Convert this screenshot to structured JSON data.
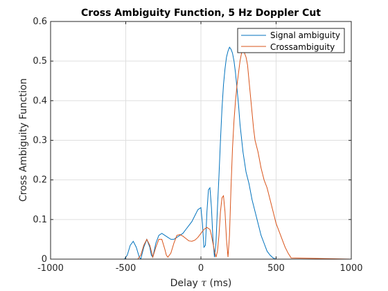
{
  "chart_data": {
    "type": "line",
    "title": "Cross Ambiguity Function, 5 Hz Doppler Cut",
    "xlabel_pre": "Delay ",
    "xlabel_sym": "τ",
    "xlabel_post": " (ms)",
    "ylabel": "Cross Ambiguity Function",
    "xlim": [
      -1000,
      1000
    ],
    "ylim": [
      0,
      0.6
    ],
    "xticks": [
      "-1000",
      "-500",
      "0",
      "500",
      "1000"
    ],
    "xtick_values": [
      -1000,
      -500,
      0,
      500,
      1000
    ],
    "yticks": [
      "0",
      "0.1",
      "0.2",
      "0.3",
      "0.4",
      "0.5",
      "0.6"
    ],
    "ytick_values": [
      0,
      0.1,
      0.2,
      0.3,
      0.4,
      0.5,
      0.6
    ],
    "grid": true,
    "legend_position": "top-right",
    "series": [
      {
        "name": "Signal ambiguity",
        "color": "#0072bd",
        "x": [
          -1000,
          -510,
          -490,
          -470,
          -450,
          -430,
          -410,
          -400,
          -380,
          -360,
          -340,
          -330,
          -320,
          -300,
          -280,
          -260,
          -240,
          -220,
          -200,
          -180,
          -160,
          -140,
          -120,
          -100,
          -80,
          -60,
          -40,
          -20,
          0,
          10,
          20,
          30,
          40,
          50,
          60,
          70,
          80,
          90,
          100,
          110,
          120,
          130,
          140,
          150,
          160,
          170,
          180,
          190,
          200,
          210,
          220,
          230,
          240,
          250,
          260,
          280,
          300,
          320,
          340,
          360,
          380,
          400,
          420,
          440,
          460,
          480,
          500,
          1000
        ],
        "y": [
          0,
          0,
          0.01,
          0.035,
          0.045,
          0.03,
          0.005,
          0,
          0.03,
          0.05,
          0.03,
          0.01,
          0.005,
          0.04,
          0.06,
          0.065,
          0.06,
          0.055,
          0.05,
          0.05,
          0.055,
          0.06,
          0.065,
          0.075,
          0.085,
          0.095,
          0.11,
          0.125,
          0.13,
          0.09,
          0.03,
          0.035,
          0.12,
          0.175,
          0.18,
          0.13,
          0.05,
          0.005,
          0.04,
          0.13,
          0.21,
          0.3,
          0.38,
          0.44,
          0.48,
          0.51,
          0.525,
          0.535,
          0.53,
          0.52,
          0.5,
          0.47,
          0.43,
          0.39,
          0.34,
          0.27,
          0.22,
          0.19,
          0.15,
          0.12,
          0.09,
          0.06,
          0.04,
          0.02,
          0.01,
          0.003,
          0,
          0
        ]
      },
      {
        "name": "Crossambiguity",
        "color": "#d95319",
        "x": [
          -1000,
          -420,
          -400,
          -380,
          -360,
          -340,
          -330,
          -320,
          -300,
          -280,
          -260,
          -240,
          -230,
          -220,
          -200,
          -180,
          -160,
          -140,
          -120,
          -100,
          -80,
          -60,
          -40,
          -20,
          0,
          20,
          40,
          60,
          70,
          80,
          90,
          100,
          110,
          120,
          130,
          140,
          150,
          160,
          170,
          180,
          190,
          200,
          210,
          220,
          230,
          240,
          250,
          260,
          270,
          280,
          290,
          300,
          310,
          320,
          330,
          340,
          350,
          360,
          380,
          400,
          420,
          440,
          460,
          480,
          500,
          520,
          540,
          560,
          580,
          600,
          1000
        ],
        "y": [
          0,
          0,
          0.01,
          0.035,
          0.05,
          0.035,
          0.02,
          0.005,
          0.03,
          0.05,
          0.05,
          0.025,
          0.01,
          0.005,
          0.015,
          0.04,
          0.06,
          0.062,
          0.058,
          0.052,
          0.046,
          0.045,
          0.048,
          0.055,
          0.065,
          0.075,
          0.08,
          0.075,
          0.06,
          0.04,
          0.02,
          0.005,
          0.02,
          0.06,
          0.12,
          0.155,
          0.16,
          0.12,
          0.05,
          0.005,
          0.06,
          0.18,
          0.28,
          0.35,
          0.4,
          0.44,
          0.47,
          0.5,
          0.52,
          0.525,
          0.52,
          0.51,
          0.49,
          0.45,
          0.41,
          0.37,
          0.33,
          0.3,
          0.27,
          0.23,
          0.2,
          0.18,
          0.15,
          0.12,
          0.09,
          0.07,
          0.05,
          0.03,
          0.015,
          0.003,
          0
        ]
      }
    ]
  }
}
